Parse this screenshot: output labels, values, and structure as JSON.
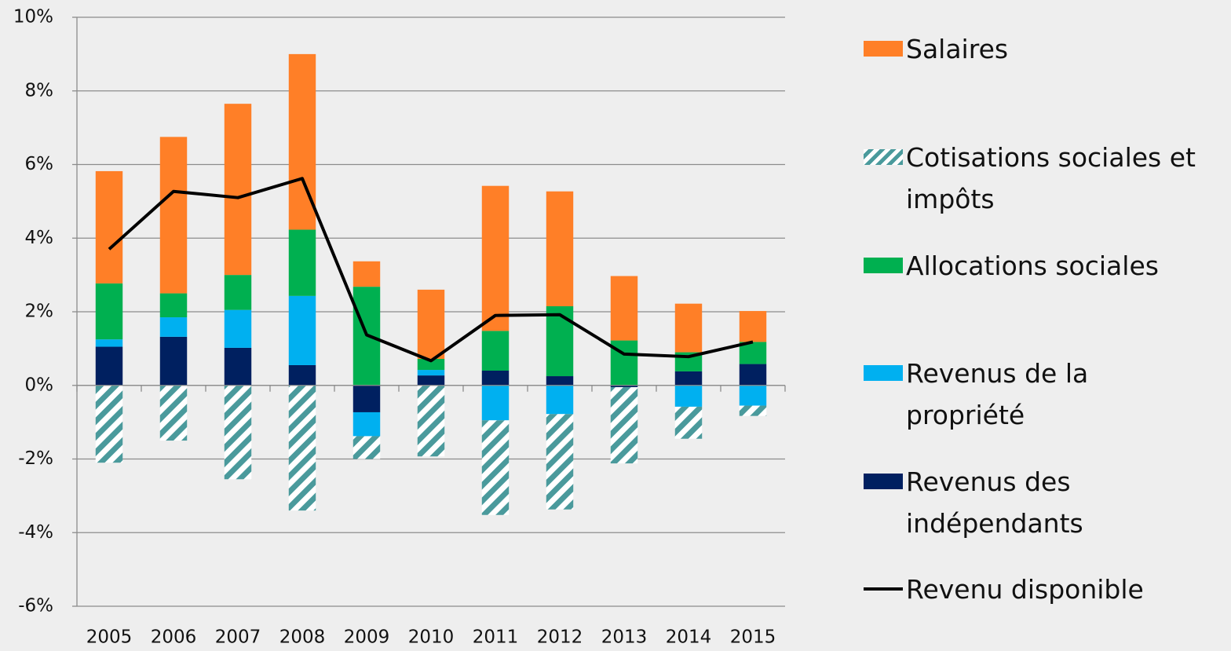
{
  "chart_data": {
    "type": "bar",
    "categories": [
      "2005",
      "2006",
      "2007",
      "2008",
      "2009",
      "2010",
      "2011",
      "2012",
      "2013",
      "2014",
      "2015"
    ],
    "ylim": [
      -6,
      10
    ],
    "yticks": [
      {
        "value": -6,
        "label": "-6%"
      },
      {
        "value": -4,
        "label": "-4%"
      },
      {
        "value": -2,
        "label": "-2%"
      },
      {
        "value": 0,
        "label": "0%"
      },
      {
        "value": 2,
        "label": "2%"
      },
      {
        "value": 4,
        "label": "4%"
      },
      {
        "value": 6,
        "label": "6%"
      },
      {
        "value": 8,
        "label": "8%"
      },
      {
        "value": 10,
        "label": "10%"
      }
    ],
    "grid": true,
    "series": [
      {
        "name": "Revenus des indépendants",
        "color": "#002060",
        "values": [
          1.05,
          1.32,
          1.02,
          0.55,
          -0.73,
          0.27,
          0.4,
          0.25,
          -0.05,
          0.38,
          0.58
        ]
      },
      {
        "name": "Revenus de la propriété",
        "color": "#00b0f0",
        "values": [
          0.2,
          0.53,
          1.03,
          1.88,
          -0.65,
          0.15,
          -0.95,
          -0.78,
          0,
          -0.58,
          -0.55
        ]
      },
      {
        "name": "Allocations sociales",
        "color": "#00b050",
        "values": [
          1.52,
          0.65,
          0.95,
          1.8,
          2.68,
          0.3,
          1.08,
          1.9,
          1.22,
          0.52,
          0.6
        ]
      },
      {
        "name": "Salaires",
        "color": "#ff7f27",
        "values": [
          3.05,
          4.25,
          4.65,
          4.77,
          0.69,
          1.88,
          3.94,
          3.12,
          1.75,
          1.32,
          0.84
        ]
      },
      {
        "name": "Cotisations sociales et impôts",
        "color": "#4a9a9c",
        "pattern": "hatch",
        "values": [
          -2.1,
          -1.5,
          -2.55,
          -3.4,
          -0.62,
          -1.93,
          -2.57,
          -2.59,
          -2.07,
          -0.87,
          -0.28
        ]
      },
      {
        "name": "Revenu disponible",
        "color": "#000000",
        "type": "line",
        "values": [
          3.7,
          5.27,
          5.1,
          5.62,
          1.37,
          0.67,
          1.9,
          1.92,
          0.85,
          0.78,
          1.18
        ]
      }
    ]
  }
}
